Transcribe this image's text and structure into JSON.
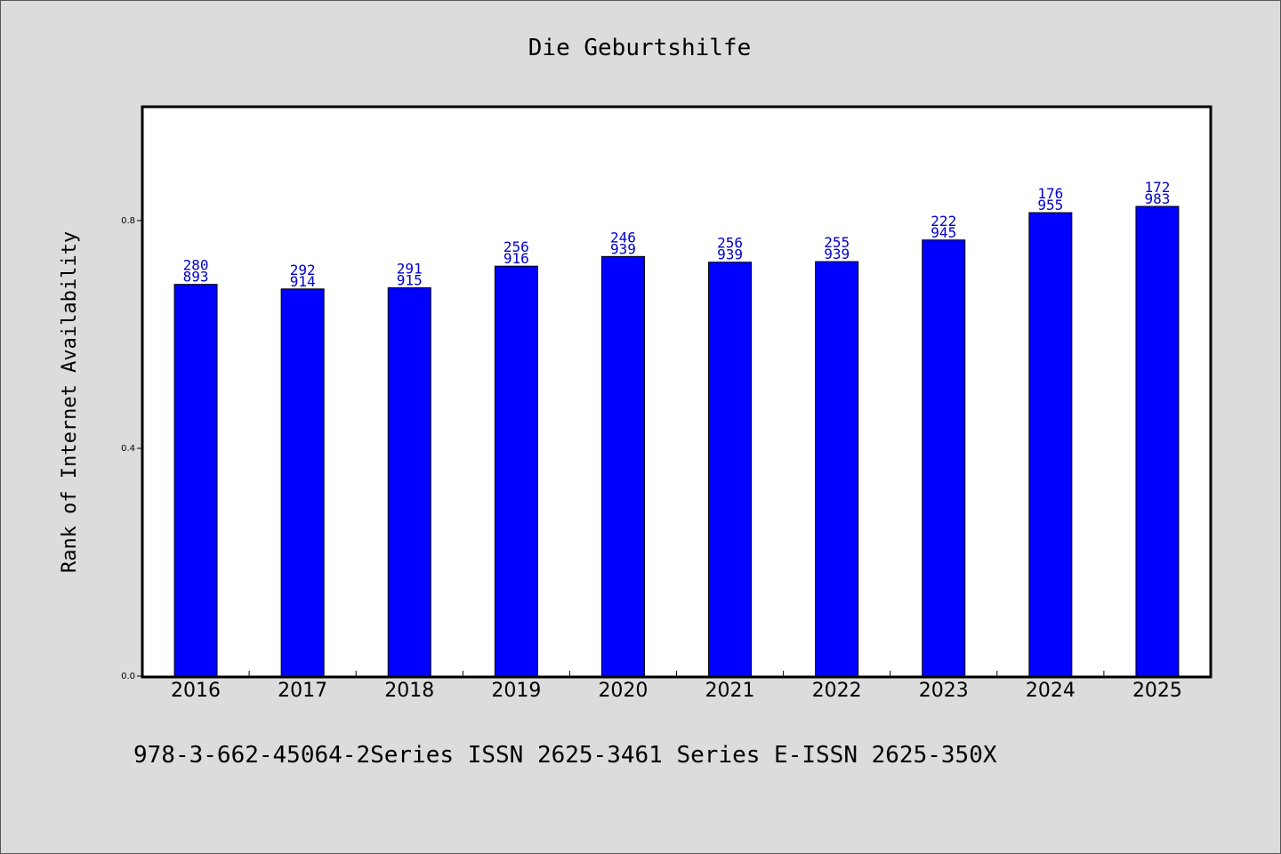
{
  "chart_data": {
    "type": "bar",
    "title": "Die Geburtshilfe",
    "xlabel": "",
    "ylabel": "Rank of Internet Availability",
    "categories": [
      "2016",
      "2017",
      "2018",
      "2019",
      "2020",
      "2021",
      "2022",
      "2023",
      "2024",
      "2025"
    ],
    "values": [
      0.688,
      0.68,
      0.682,
      0.72,
      0.737,
      0.727,
      0.728,
      0.766,
      0.814,
      0.825
    ],
    "bar_labels": [
      [
        "280",
        "893"
      ],
      [
        "292",
        "914"
      ],
      [
        "291",
        "915"
      ],
      [
        "256",
        "916"
      ],
      [
        "246",
        "939"
      ],
      [
        "256",
        "939"
      ],
      [
        "255",
        "939"
      ],
      [
        "222",
        "945"
      ],
      [
        "176",
        "955"
      ],
      [
        "172",
        "983"
      ]
    ],
    "yticks": [
      "0.0",
      "0.4",
      "0.8"
    ],
    "ytick_values": [
      0.0,
      0.4,
      0.8
    ],
    "ylim": [
      0,
      1.0
    ],
    "grid": false,
    "colors": {
      "bar": "#0000ff",
      "bar_label": "#0000cc",
      "plot_bg": "#ffffff",
      "page_bg": "#dcdcdc"
    }
  },
  "footer": {
    "text": "978-3-662-45064-2Series ISSN 2625-3461 Series E-ISSN 2625-350X"
  }
}
